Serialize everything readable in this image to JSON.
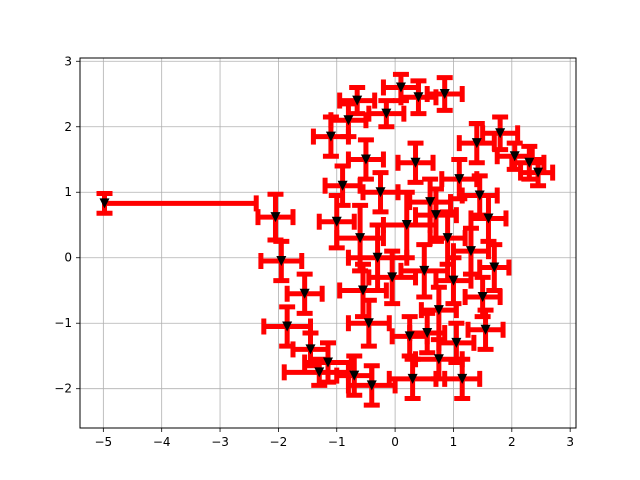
{
  "chart_data": {
    "type": "scatter",
    "title": "",
    "xlabel": "",
    "ylabel": "",
    "xlim": [
      -5.4,
      3.1
    ],
    "ylim": [
      -2.6,
      3.05
    ],
    "xticks": [
      -5,
      -4,
      -3,
      -2,
      -1,
      0,
      1,
      2,
      3
    ],
    "yticks": [
      -2,
      -1,
      0,
      1,
      2,
      3
    ],
    "xtick_labels": [
      "−5",
      "−4",
      "−3",
      "−2",
      "−1",
      "0",
      "1",
      "2",
      "3"
    ],
    "ytick_labels": [
      "−2",
      "−1",
      "0",
      "1",
      "2",
      "3"
    ],
    "grid": true,
    "legend": "none",
    "marker": "triangle-down",
    "marker_color": "#000000",
    "errorbar_color": "#ff0000",
    "points": [
      {
        "x": -4.98,
        "y": 0.83,
        "xerr": [
          0,
          2.6
        ],
        "yerr": [
          0.15,
          0.15
        ]
      },
      {
        "x": -2.05,
        "y": 0.62,
        "xerr": [
          0.3,
          0.3
        ],
        "yerr": [
          0.35,
          0.35
        ]
      },
      {
        "x": -1.95,
        "y": -0.05,
        "xerr": [
          0.35,
          0.35
        ],
        "yerr": [
          0.3,
          0.3
        ]
      },
      {
        "x": -1.85,
        "y": -1.05,
        "xerr": [
          0.4,
          0.4
        ],
        "yerr": [
          0.3,
          0.3
        ]
      },
      {
        "x": -1.55,
        "y": -0.55,
        "xerr": [
          0.3,
          0.3
        ],
        "yerr": [
          0.3,
          0.3
        ]
      },
      {
        "x": -1.45,
        "y": -1.4,
        "xerr": [
          0.3,
          0.3
        ],
        "yerr": [
          0.25,
          0.25
        ]
      },
      {
        "x": -1.3,
        "y": -1.75,
        "xerr": [
          0.6,
          0.5
        ],
        "yerr": [
          0.2,
          0.2
        ]
      },
      {
        "x": -1.15,
        "y": -1.6,
        "xerr": [
          0.4,
          0.4
        ],
        "yerr": [
          0.3,
          0.3
        ]
      },
      {
        "x": -1.1,
        "y": 1.85,
        "xerr": [
          0.3,
          0.3
        ],
        "yerr": [
          0.3,
          0.3
        ]
      },
      {
        "x": -1.0,
        "y": 0.55,
        "xerr": [
          0.3,
          0.3
        ],
        "yerr": [
          0.4,
          0.4
        ]
      },
      {
        "x": -0.9,
        "y": 1.1,
        "xerr": [
          0.3,
          0.3
        ],
        "yerr": [
          0.3,
          0.3
        ]
      },
      {
        "x": -0.8,
        "y": 2.1,
        "xerr": [
          0.3,
          0.3
        ],
        "yerr": [
          0.25,
          0.25
        ]
      },
      {
        "x": -0.7,
        "y": -1.8,
        "xerr": [
          0.3,
          0.3
        ],
        "yerr": [
          0.3,
          0.3
        ]
      },
      {
        "x": -0.65,
        "y": 2.4,
        "xerr": [
          0.3,
          0.3
        ],
        "yerr": [
          0.2,
          0.2
        ]
      },
      {
        "x": -0.6,
        "y": 0.3,
        "xerr": [
          0.4,
          0.4
        ],
        "yerr": [
          0.5,
          0.5
        ]
      },
      {
        "x": -0.55,
        "y": -0.5,
        "xerr": [
          0.4,
          0.4
        ],
        "yerr": [
          0.4,
          0.4
        ]
      },
      {
        "x": -0.5,
        "y": 1.5,
        "xerr": [
          0.3,
          0.3
        ],
        "yerr": [
          0.3,
          0.3
        ]
      },
      {
        "x": -0.45,
        "y": -1.0,
        "xerr": [
          0.35,
          0.35
        ],
        "yerr": [
          0.35,
          0.35
        ]
      },
      {
        "x": -0.4,
        "y": -1.95,
        "xerr": [
          0.4,
          0.4
        ],
        "yerr": [
          0.3,
          0.3
        ]
      },
      {
        "x": -0.3,
        "y": 0.0,
        "xerr": [
          0.5,
          0.5
        ],
        "yerr": [
          0.5,
          0.5
        ]
      },
      {
        "x": -0.25,
        "y": 1.0,
        "xerr": [
          0.3,
          0.3
        ],
        "yerr": [
          0.3,
          0.3
        ]
      },
      {
        "x": -0.15,
        "y": 2.2,
        "xerr": [
          0.3,
          0.3
        ],
        "yerr": [
          0.2,
          0.2
        ]
      },
      {
        "x": -0.05,
        "y": -0.3,
        "xerr": [
          0.4,
          0.4
        ],
        "yerr": [
          0.4,
          0.4
        ]
      },
      {
        "x": 0.1,
        "y": 2.6,
        "xerr": [
          0.3,
          0.3
        ],
        "yerr": [
          0.2,
          0.2
        ]
      },
      {
        "x": 0.2,
        "y": 0.5,
        "xerr": [
          0.4,
          0.4
        ],
        "yerr": [
          0.5,
          0.5
        ]
      },
      {
        "x": 0.25,
        "y": -1.2,
        "xerr": [
          0.3,
          0.3
        ],
        "yerr": [
          0.3,
          0.3
        ]
      },
      {
        "x": 0.3,
        "y": -1.85,
        "xerr": [
          0.4,
          0.4
        ],
        "yerr": [
          0.3,
          0.3
        ]
      },
      {
        "x": 0.35,
        "y": 1.45,
        "xerr": [
          0.3,
          0.3
        ],
        "yerr": [
          0.3,
          0.3
        ]
      },
      {
        "x": 0.4,
        "y": 2.45,
        "xerr": [
          0.3,
          0.3
        ],
        "yerr": [
          0.25,
          0.25
        ]
      },
      {
        "x": 0.5,
        "y": -0.2,
        "xerr": [
          0.4,
          0.4
        ],
        "yerr": [
          0.4,
          0.4
        ]
      },
      {
        "x": 0.55,
        "y": -1.15,
        "xerr": [
          0.3,
          0.3
        ],
        "yerr": [
          0.3,
          0.3
        ]
      },
      {
        "x": 0.6,
        "y": 0.85,
        "xerr": [
          0.35,
          0.35
        ],
        "yerr": [
          0.35,
          0.35
        ]
      },
      {
        "x": 0.7,
        "y": 0.65,
        "xerr": [
          0.35,
          0.35
        ],
        "yerr": [
          0.4,
          0.4
        ]
      },
      {
        "x": 0.75,
        "y": -0.8,
        "xerr": [
          0.3,
          0.3
        ],
        "yerr": [
          0.35,
          0.35
        ]
      },
      {
        "x": 0.75,
        "y": -1.55,
        "xerr": [
          0.4,
          0.4
        ],
        "yerr": [
          0.3,
          0.3
        ]
      },
      {
        "x": 0.85,
        "y": 2.5,
        "xerr": [
          0.3,
          0.3
        ],
        "yerr": [
          0.25,
          0.25
        ]
      },
      {
        "x": 0.9,
        "y": 0.3,
        "xerr": [
          0.3,
          0.3
        ],
        "yerr": [
          0.4,
          0.4
        ]
      },
      {
        "x": 1.0,
        "y": -0.35,
        "xerr": [
          0.3,
          0.3
        ],
        "yerr": [
          0.35,
          0.35
        ]
      },
      {
        "x": 1.05,
        "y": -1.3,
        "xerr": [
          0.3,
          0.3
        ],
        "yerr": [
          0.3,
          0.3
        ]
      },
      {
        "x": 1.1,
        "y": 1.2,
        "xerr": [
          0.3,
          0.3
        ],
        "yerr": [
          0.3,
          0.3
        ]
      },
      {
        "x": 1.15,
        "y": -1.85,
        "xerr": [
          0.3,
          0.3
        ],
        "yerr": [
          0.3,
          0.3
        ]
      },
      {
        "x": 1.3,
        "y": 0.1,
        "xerr": [
          0.3,
          0.3
        ],
        "yerr": [
          0.35,
          0.35
        ]
      },
      {
        "x": 1.4,
        "y": 1.75,
        "xerr": [
          0.3,
          0.3
        ],
        "yerr": [
          0.3,
          0.3
        ]
      },
      {
        "x": 1.45,
        "y": 0.95,
        "xerr": [
          0.3,
          0.3
        ],
        "yerr": [
          0.3,
          0.3
        ]
      },
      {
        "x": 1.5,
        "y": -0.6,
        "xerr": [
          0.3,
          0.3
        ],
        "yerr": [
          0.3,
          0.3
        ]
      },
      {
        "x": 1.55,
        "y": -1.1,
        "xerr": [
          0.3,
          0.3
        ],
        "yerr": [
          0.3,
          0.3
        ]
      },
      {
        "x": 1.6,
        "y": 0.6,
        "xerr": [
          0.3,
          0.3
        ],
        "yerr": [
          0.35,
          0.35
        ]
      },
      {
        "x": 1.7,
        "y": -0.15,
        "xerr": [
          0.25,
          0.25
        ],
        "yerr": [
          0.35,
          0.35
        ]
      },
      {
        "x": 1.8,
        "y": 1.9,
        "xerr": [
          0.3,
          0.3
        ],
        "yerr": [
          0.25,
          0.25
        ]
      },
      {
        "x": 2.05,
        "y": 1.55,
        "xerr": [
          0.3,
          0.3
        ],
        "yerr": [
          0.2,
          0.2
        ]
      },
      {
        "x": 2.3,
        "y": 1.45,
        "xerr": [
          0.3,
          0.25
        ],
        "yerr": [
          0.25,
          0.25
        ]
      },
      {
        "x": 2.45,
        "y": 1.3,
        "xerr": [
          0.3,
          0.25
        ],
        "yerr": [
          0.2,
          0.2
        ]
      }
    ]
  }
}
